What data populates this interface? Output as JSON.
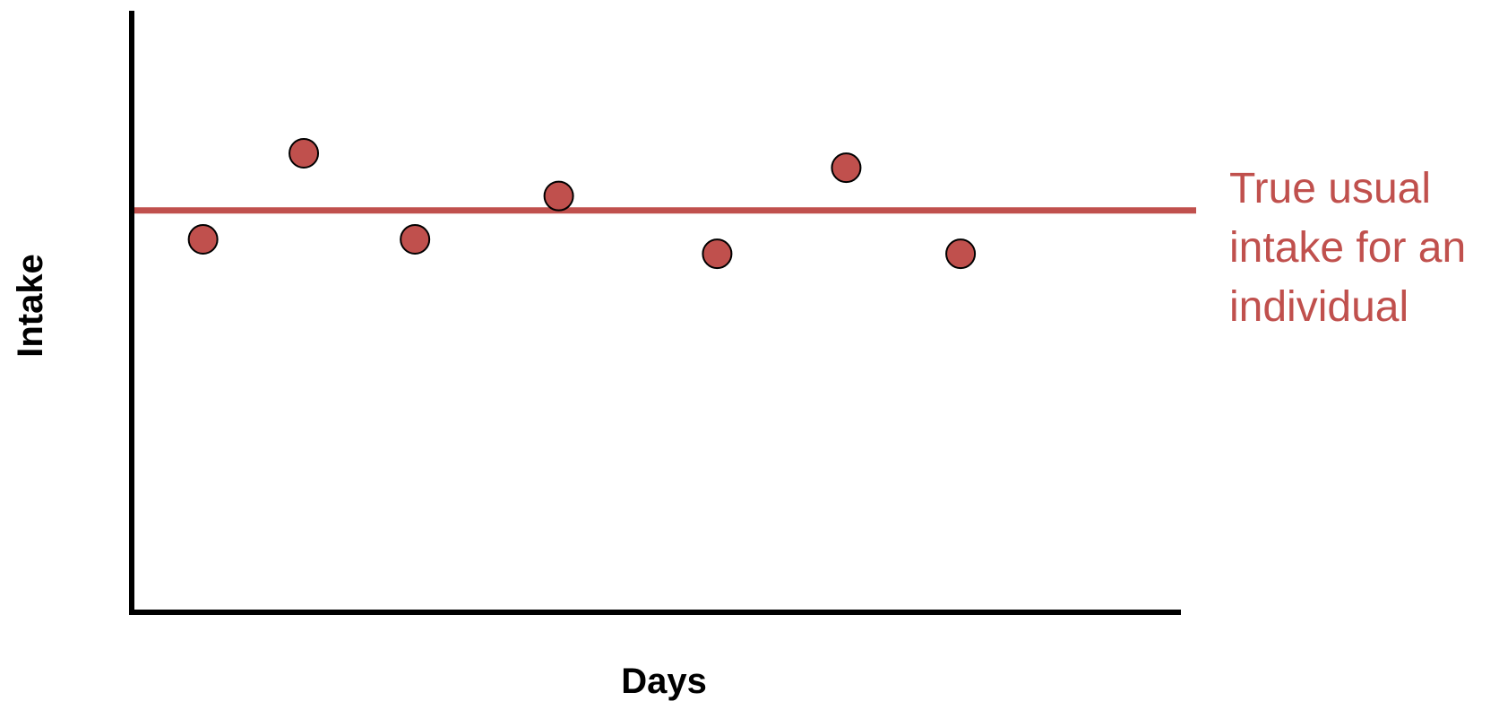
{
  "chart_data": {
    "type": "scatter",
    "title": "",
    "xlabel": "Days",
    "ylabel": "Intake",
    "xlim": [
      0,
      1
    ],
    "ylim": [
      0,
      1
    ],
    "grid": false,
    "ticks": false,
    "points": [
      {
        "x": 0.068,
        "y": 0.62
      },
      {
        "x": 0.164,
        "y": 0.763
      },
      {
        "x": 0.27,
        "y": 0.62
      },
      {
        "x": 0.407,
        "y": 0.692
      },
      {
        "x": 0.558,
        "y": 0.596
      },
      {
        "x": 0.681,
        "y": 0.739
      },
      {
        "x": 0.79,
        "y": 0.596
      }
    ],
    "reference_line": {
      "y": 0.668,
      "label": "True usual intake for an individual",
      "label_lines": [
        "True usual",
        "intake for an",
        "individual"
      ]
    },
    "colors": {
      "point_fill": "#c0504d",
      "reference_line": "#c0504d",
      "annotation_text": "#c0504d"
    }
  }
}
